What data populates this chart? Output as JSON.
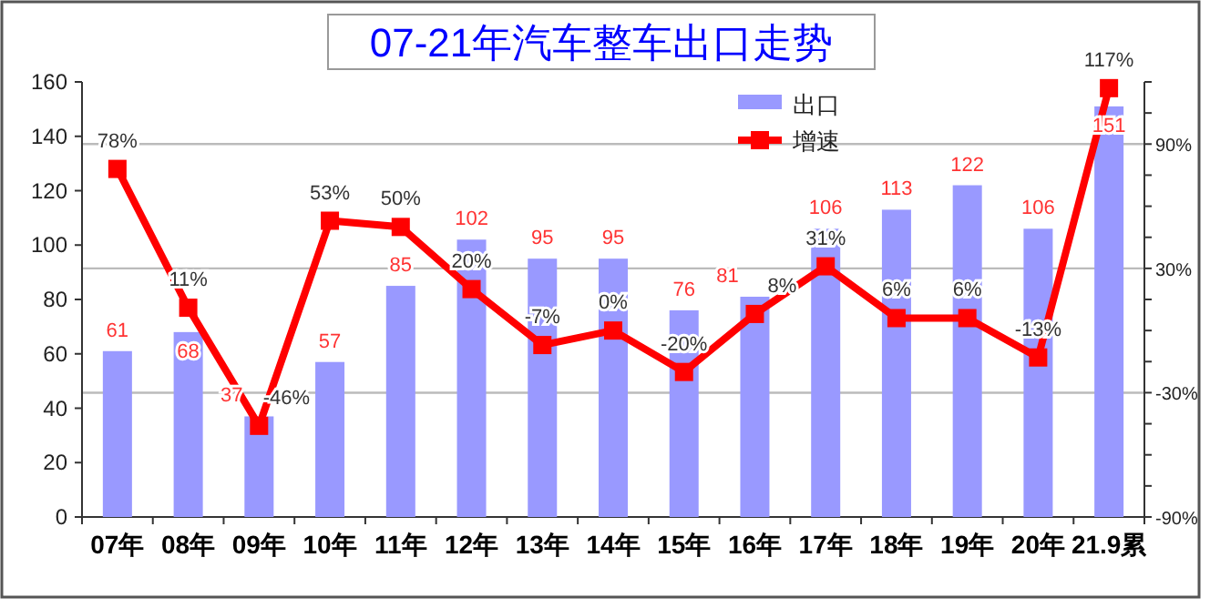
{
  "chart_data": {
    "type": "bar",
    "title": "07-21年汽车整车出口走势",
    "categories": [
      "07年",
      "08年",
      "09年",
      "10年",
      "11年",
      "12年",
      "13年",
      "14年",
      "15年",
      "16年",
      "17年",
      "18年",
      "19年",
      "20年",
      "21.9累"
    ],
    "series": [
      {
        "name": "出口",
        "color": "#9999ff",
        "values": [
          61,
          68,
          37,
          57,
          85,
          102,
          95,
          95,
          76,
          81,
          106,
          113,
          122,
          106,
          151
        ],
        "value_labels": [
          "61",
          "68",
          "37",
          "57",
          "85",
          "102",
          "95",
          "95",
          "76",
          "81",
          "106",
          "113",
          "122",
          "106",
          "151"
        ]
      },
      {
        "name": "增速",
        "type": "line",
        "axis": "y2",
        "color": "#ff0000",
        "values": [
          78,
          11,
          -46,
          53,
          50,
          20,
          -7,
          0,
          -20,
          8,
          31,
          6,
          6,
          -13,
          117
        ],
        "value_labels": [
          "78%",
          "11%",
          "-46%",
          "53%",
          "50%",
          "20%",
          "-7%",
          "0%",
          "-20%",
          "8%",
          "31%",
          "6%",
          "6%",
          "-13%",
          "117%"
        ]
      }
    ],
    "ylim": [
      0,
      160
    ],
    "yticks": [
      0,
      20,
      40,
      60,
      80,
      100,
      120,
      140,
      160
    ],
    "y2lim": [
      -90,
      120
    ],
    "y2ticks": [
      {
        "value": -90,
        "label": "-90%"
      },
      {
        "value": -75,
        "label": null
      },
      {
        "value": -60,
        "label": null
      },
      {
        "value": -45,
        "label": null
      },
      {
        "value": -30,
        "label": "-30%"
      },
      {
        "value": -15,
        "label": null
      },
      {
        "value": 0,
        "label": null
      },
      {
        "value": 15,
        "label": null
      },
      {
        "value": 30,
        "label": "30%"
      },
      {
        "value": 45,
        "label": null
      },
      {
        "value": 60,
        "label": null
      },
      {
        "value": 75,
        "label": null
      },
      {
        "value": 90,
        "label": "90%"
      },
      {
        "value": 105,
        "label": null
      },
      {
        "value": 120,
        "label": null
      }
    ],
    "grid": "y",
    "legend": "top right",
    "marker": "square"
  }
}
